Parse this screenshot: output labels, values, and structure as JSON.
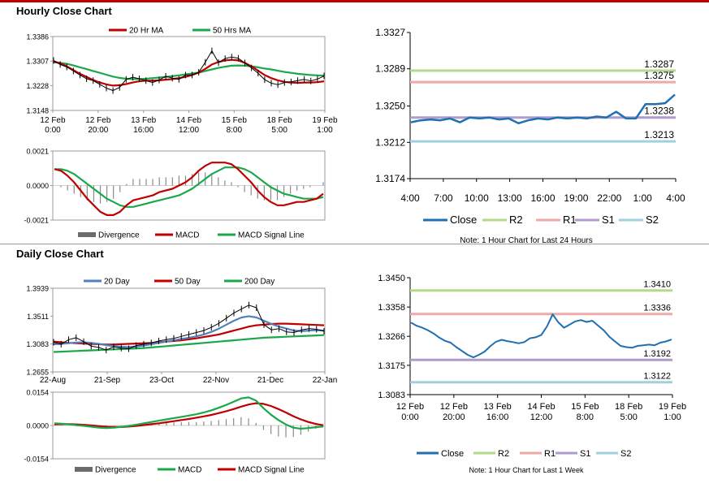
{
  "sections": {
    "hourly_title": "Hourly Close Chart",
    "daily_title": "Daily Close Chart"
  },
  "chart_data": [
    {
      "id": "hourly-price",
      "type": "line",
      "ylim": [
        1.3148,
        1.3386
      ],
      "yticks": [
        "1.3386",
        "1.3307",
        "1.3228",
        "1.3148"
      ],
      "ytick_values": [
        1.3386,
        1.3307,
        1.3228,
        1.3148
      ],
      "xticks": [
        "12 Feb\n0:00",
        "12 Feb\n20:00",
        "13 Feb\n16:00",
        "14 Feb\n12:00",
        "15 Feb\n8:00",
        "18 Feb\n5:00",
        "19 Feb\n1:00"
      ],
      "legend": [
        "20 Hr MA",
        "50 Hrs MA"
      ],
      "colors": {
        "close": "#000000",
        "ma20": "#c00000",
        "ma50": "#1aa84a"
      },
      "series": [
        {
          "name": "Close",
          "values": [
            1.3309,
            1.3296,
            1.3288,
            1.3275,
            1.3262,
            1.325,
            1.3244,
            1.3232,
            1.322,
            1.3212,
            1.3222,
            1.3248,
            1.3255,
            1.325,
            1.3244,
            1.3238,
            1.3246,
            1.3258,
            1.3252,
            1.3248,
            1.3262,
            1.3262,
            1.3271,
            1.3303,
            1.334,
            1.3302,
            1.3315,
            1.332,
            1.3316,
            1.3301,
            1.3285,
            1.3268,
            1.3247,
            1.3236,
            1.3231,
            1.3238,
            1.324,
            1.3244,
            1.3248,
            1.3243,
            1.3249,
            1.3259
          ]
        },
        {
          "name": "20 Hr MA",
          "values": [
            1.3306,
            1.33,
            1.329,
            1.3278,
            1.3266,
            1.3256,
            1.3246,
            1.3238,
            1.3232,
            1.3228,
            1.3229,
            1.3233,
            1.3238,
            1.3242,
            1.3244,
            1.3244,
            1.3245,
            1.3247,
            1.3249,
            1.3252,
            1.3256,
            1.3262,
            1.327,
            1.3282,
            1.3296,
            1.3304,
            1.3309,
            1.3311,
            1.3309,
            1.3301,
            1.329,
            1.3276,
            1.3262,
            1.3252,
            1.3245,
            1.324,
            1.3238,
            1.3237,
            1.3238,
            1.3238,
            1.3239,
            1.3242
          ]
        },
        {
          "name": "50 Hrs MA",
          "values": [
            1.3303,
            1.3301,
            1.3298,
            1.3293,
            1.3287,
            1.3281,
            1.3275,
            1.3269,
            1.3263,
            1.3257,
            1.3253,
            1.325,
            1.3249,
            1.3249,
            1.325,
            1.3252,
            1.3254,
            1.3256,
            1.3258,
            1.3261,
            1.3264,
            1.3267,
            1.327,
            1.3275,
            1.328,
            1.3285,
            1.3289,
            1.3292,
            1.3293,
            1.3292,
            1.329,
            1.3287,
            1.3283,
            1.328,
            1.3276,
            1.3272,
            1.3269,
            1.3266,
            1.3264,
            1.3262,
            1.3261,
            1.326
          ]
        }
      ]
    },
    {
      "id": "hourly-macd",
      "type": "line",
      "ylim": [
        -0.0021,
        0.0021
      ],
      "yticks": [
        "0.0021",
        "0.0000",
        "-0.0021"
      ],
      "ytick_values": [
        0.0021,
        0.0,
        -0.0021
      ],
      "legend": [
        "Divergence",
        "MACD",
        "MACD Signal Line"
      ],
      "colors": {
        "divergence": "#6b6b6b",
        "macd": "#c00000",
        "signal": "#1aa84a"
      },
      "series": [
        {
          "name": "MACD",
          "values": [
            0.001,
            0.0009,
            0.0006,
            0.0002,
            -0.0003,
            -0.0008,
            -0.0012,
            -0.0016,
            -0.0018,
            -0.0018,
            -0.0016,
            -0.0012,
            -0.0009,
            -0.0008,
            -0.0007,
            -0.0006,
            -0.0004,
            -0.0003,
            -0.0002,
            0.0,
            0.0002,
            0.0005,
            0.0009,
            0.0012,
            0.0014,
            0.0014,
            0.0014,
            0.0013,
            0.001,
            0.0006,
            0.0002,
            -0.0003,
            -0.0007,
            -0.001,
            -0.0012,
            -0.0012,
            -0.0011,
            -0.001,
            -0.001,
            -0.0009,
            -0.0008,
            -0.0005
          ]
        },
        {
          "name": "MACD Signal Line",
          "values": [
            0.001,
            0.001,
            0.0009,
            0.0007,
            0.0004,
            0.0001,
            -0.0002,
            -0.0005,
            -0.0008,
            -0.001,
            -0.0012,
            -0.0013,
            -0.0013,
            -0.0012,
            -0.0011,
            -0.001,
            -0.0009,
            -0.0008,
            -0.0007,
            -0.0006,
            -0.0004,
            -0.0002,
            0.0001,
            0.0004,
            0.0007,
            0.0009,
            0.0011,
            0.0011,
            0.0011,
            0.001,
            0.0008,
            0.0005,
            0.0002,
            -0.0001,
            -0.0003,
            -0.0005,
            -0.0006,
            -0.0007,
            -0.0008,
            -0.0008,
            -0.0008,
            -0.0007
          ]
        }
      ]
    },
    {
      "id": "hourly-levels",
      "type": "line",
      "ylim": [
        1.3174,
        1.3327
      ],
      "yticks": [
        "1.3327",
        "1.3289",
        "1.3250",
        "1.3212",
        "1.3174"
      ],
      "ytick_values": [
        1.3327,
        1.3289,
        1.325,
        1.3212,
        1.3174
      ],
      "xticks": [
        "4:00",
        "7:00",
        "10:00",
        "13:00",
        "16:00",
        "19:00",
        "22:00",
        "1:00",
        "4:00"
      ],
      "legend": [
        "Close",
        "R2",
        "R1",
        "S1",
        "S2"
      ],
      "colors": {
        "close": "#1f6fb2",
        "r2": "#b5d98a",
        "r1": "#eea9a9",
        "s1": "#b09ccb",
        "s2": "#9fd0dc"
      },
      "levels": [
        {
          "name": "R2",
          "value": 1.3287,
          "label": "1.3287"
        },
        {
          "name": "R1",
          "value": 1.3275,
          "label": "1.3275"
        },
        {
          "name": "S1",
          "value": 1.3238,
          "label": "1.3238"
        },
        {
          "name": "S2",
          "value": 1.3213,
          "label": "1.3213"
        }
      ],
      "series": [
        {
          "name": "Close",
          "values": [
            1.3233,
            1.3235,
            1.3236,
            1.3235,
            1.3237,
            1.3233,
            1.3238,
            1.3237,
            1.3238,
            1.3236,
            1.3237,
            1.3232,
            1.3235,
            1.3237,
            1.3236,
            1.3238,
            1.3237,
            1.3238,
            1.3237,
            1.3239,
            1.3238,
            1.3244,
            1.3237,
            1.3237,
            1.3252,
            1.3252,
            1.3253,
            1.3262
          ]
        }
      ],
      "note": "Note: 1 Hour Chart for Last 24 Hours"
    },
    {
      "id": "daily-price",
      "type": "line",
      "ylim": [
        1.2655,
        1.3939
      ],
      "yticks": [
        "1.3939",
        "1.3511",
        "1.3083",
        "1.2655"
      ],
      "ytick_values": [
        1.3939,
        1.3511,
        1.3083,
        1.2655
      ],
      "xticks": [
        "22-Aug",
        "21-Sep",
        "23-Oct",
        "22-Nov",
        "21-Dec",
        "22-Jan"
      ],
      "legend": [
        "20 Day",
        "50 Day",
        "200 Day"
      ],
      "colors": {
        "close": "#000000",
        "ma20": "#4f81bd",
        "ma50": "#c00000",
        "ma200": "#1aa84a"
      },
      "series": [
        {
          "name": "Close",
          "values": [
            1.311,
            1.308,
            1.315,
            1.318,
            1.312,
            1.305,
            1.303,
            1.299,
            1.304,
            1.302,
            1.301,
            1.306,
            1.308,
            1.31,
            1.313,
            1.315,
            1.317,
            1.32,
            1.323,
            1.326,
            1.329,
            1.334,
            1.34,
            1.348,
            1.356,
            1.362,
            1.368,
            1.364,
            1.338,
            1.33,
            1.332,
            1.327,
            1.326,
            1.33,
            1.332,
            1.331,
            1.328
          ]
        },
        {
          "name": "20 Day",
          "values": [
            1.308,
            1.3085,
            1.3095,
            1.3105,
            1.311,
            1.31,
            1.3085,
            1.3065,
            1.305,
            1.304,
            1.3035,
            1.3045,
            1.306,
            1.308,
            1.31,
            1.312,
            1.314,
            1.316,
            1.318,
            1.32,
            1.323,
            1.327,
            1.332,
            1.338,
            1.344,
            1.349,
            1.351,
            1.349,
            1.344,
            1.339,
            1.335,
            1.332,
            1.329,
            1.328,
            1.329,
            1.3295,
            1.329
          ]
        },
        {
          "name": "50 Day",
          "values": [
            1.312,
            1.311,
            1.31,
            1.3095,
            1.309,
            1.3085,
            1.308,
            1.3075,
            1.3075,
            1.308,
            1.3085,
            1.309,
            1.3095,
            1.31,
            1.311,
            1.312,
            1.313,
            1.314,
            1.3155,
            1.317,
            1.319,
            1.321,
            1.323,
            1.326,
            1.329,
            1.332,
            1.335,
            1.337,
            1.338,
            1.339,
            1.3395,
            1.3395,
            1.339,
            1.3385,
            1.338,
            1.3375,
            1.337
          ]
        },
        {
          "name": "200 Day",
          "values": [
            1.296,
            1.2965,
            1.297,
            1.2975,
            1.298,
            1.2985,
            1.299,
            1.2995,
            1.3,
            1.3005,
            1.301,
            1.3015,
            1.302,
            1.303,
            1.304,
            1.305,
            1.306,
            1.307,
            1.308,
            1.309,
            1.31,
            1.311,
            1.312,
            1.313,
            1.314,
            1.315,
            1.316,
            1.317,
            1.318,
            1.3185,
            1.319,
            1.3195,
            1.32,
            1.3205,
            1.321,
            1.3215,
            1.322
          ]
        }
      ]
    },
    {
      "id": "daily-macd",
      "type": "line",
      "ylim": [
        -0.0154,
        0.0154
      ],
      "yticks": [
        "0.0154",
        "0.0000",
        "-0.0154"
      ],
      "ytick_values": [
        0.0154,
        0.0,
        -0.0154
      ],
      "legend": [
        "Divergence",
        "MACD",
        "MACD Signal Line"
      ],
      "colors": {
        "divergence": "#6b6b6b",
        "macd": "#1aa84a",
        "signal": "#c00000"
      },
      "series": [
        {
          "name": "MACD",
          "values": [
            0.001,
            0.0008,
            0.0005,
            0.0001,
            -0.0002,
            -0.0006,
            -0.001,
            -0.0012,
            -0.001,
            -0.0006,
            -0.0002,
            0.0004,
            0.001,
            0.0016,
            0.0022,
            0.0028,
            0.0034,
            0.004,
            0.0046,
            0.0052,
            0.006,
            0.007,
            0.0082,
            0.0095,
            0.011,
            0.0125,
            0.013,
            0.0115,
            0.008,
            0.005,
            0.0025,
            0.0005,
            -0.001,
            -0.0015,
            -0.0012,
            -0.0008,
            -0.0005
          ]
        },
        {
          "name": "MACD Signal Line",
          "values": [
            0.0005,
            0.0006,
            0.0006,
            0.0005,
            0.0003,
            0.0,
            -0.0003,
            -0.0006,
            -0.0007,
            -0.0007,
            -0.0005,
            -0.0002,
            0.0002,
            0.0006,
            0.001,
            0.0015,
            0.002,
            0.0025,
            0.003,
            0.0036,
            0.0042,
            0.0049,
            0.0057,
            0.0066,
            0.0076,
            0.0087,
            0.0097,
            0.0103,
            0.01,
            0.009,
            0.0076,
            0.006,
            0.0043,
            0.0028,
            0.0016,
            0.0007,
            0.0001
          ]
        }
      ]
    },
    {
      "id": "daily-levels",
      "type": "line",
      "ylim": [
        1.3083,
        1.345
      ],
      "yticks": [
        "1.3450",
        "1.3358",
        "1.3266",
        "1.3175",
        "1.3083"
      ],
      "ytick_values": [
        1.345,
        1.3358,
        1.3266,
        1.3175,
        1.3083
      ],
      "xticks": [
        "12 Feb\n0:00",
        "12 Feb\n20:00",
        "13 Feb\n16:00",
        "14 Feb\n12:00",
        "15 Feb\n8:00",
        "18 Feb\n5:00",
        "19 Feb\n1:00"
      ],
      "legend": [
        "Close",
        "R2",
        "R1",
        "S1",
        "S2"
      ],
      "colors": {
        "close": "#1f6fb2",
        "r2": "#b5d98a",
        "r1": "#eea9a9",
        "s1": "#b09ccb",
        "s2": "#9fd0dc"
      },
      "levels": [
        {
          "name": "R2",
          "value": 1.341,
          "label": "1.3410"
        },
        {
          "name": "R1",
          "value": 1.3336,
          "label": "1.3336"
        },
        {
          "name": "S1",
          "value": 1.3192,
          "label": "1.3192"
        },
        {
          "name": "S2",
          "value": 1.3122,
          "label": "1.3122"
        }
      ],
      "series": [
        {
          "name": "Close",
          "values": [
            1.3309,
            1.3299,
            1.3293,
            1.3285,
            1.3275,
            1.3262,
            1.3252,
            1.3246,
            1.3232,
            1.322,
            1.3208,
            1.32,
            1.3208,
            1.3218,
            1.3235,
            1.3249,
            1.3255,
            1.3251,
            1.3248,
            1.3244,
            1.3248,
            1.326,
            1.3263,
            1.327,
            1.3297,
            1.3335,
            1.331,
            1.3293,
            1.3303,
            1.3313,
            1.3317,
            1.3311,
            1.3315,
            1.33,
            1.3285,
            1.3265,
            1.325,
            1.3236,
            1.3232,
            1.323,
            1.3236,
            1.3238,
            1.324,
            1.3238,
            1.3246,
            1.325,
            1.3256
          ]
        }
      ],
      "note": "Note: 1 Hour Chart for Last 1 Week"
    }
  ]
}
